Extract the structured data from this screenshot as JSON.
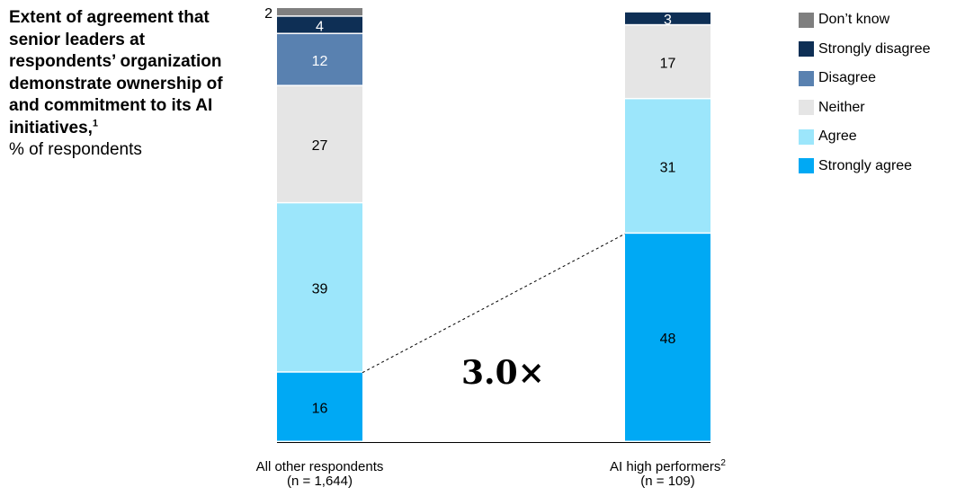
{
  "title": "Extent of agreement that senior leaders at respondents’ organization demonstrate ownership of and commitment to its AI initiatives,",
  "title_footnote": "1",
  "subtitle": "% of respondents",
  "multiplier": "3.0×",
  "colors": {
    "dont_know": "#7f7f7f",
    "strongly_disagree": "#0e2f55",
    "disagree": "#5981b0",
    "neither": "#e5e5e5",
    "agree": "#9ce6fb",
    "strongly_agree": "#00a9f4"
  },
  "chart_data": {
    "type": "bar",
    "stacked": true,
    "orientation": "vertical",
    "categories": [
      {
        "name": "All other respondents",
        "footnote": "",
        "n": "(n = 1,644)"
      },
      {
        "name": "AI high performers",
        "footnote": "2",
        "n": "(n = 109)"
      }
    ],
    "series": [
      {
        "name": "Strongly agree",
        "key": "strongly_agree",
        "values": [
          16,
          48
        ]
      },
      {
        "name": "Agree",
        "key": "agree",
        "values": [
          39,
          31
        ]
      },
      {
        "name": "Neither",
        "key": "neither",
        "values": [
          27,
          17
        ]
      },
      {
        "name": "Disagree",
        "key": "disagree",
        "values": [
          12,
          0
        ]
      },
      {
        "name": "Strongly disagree",
        "key": "strongly_disagree",
        "values": [
          4,
          3
        ]
      },
      {
        "name": "Don’t know",
        "key": "dont_know",
        "values": [
          2,
          0
        ]
      }
    ],
    "legend_order": [
      "Don’t know",
      "Strongly disagree",
      "Disagree",
      "Neither",
      "Agree",
      "Strongly agree"
    ],
    "ylim": [
      0,
      100
    ],
    "grid": false,
    "legend_position": "top-right"
  }
}
